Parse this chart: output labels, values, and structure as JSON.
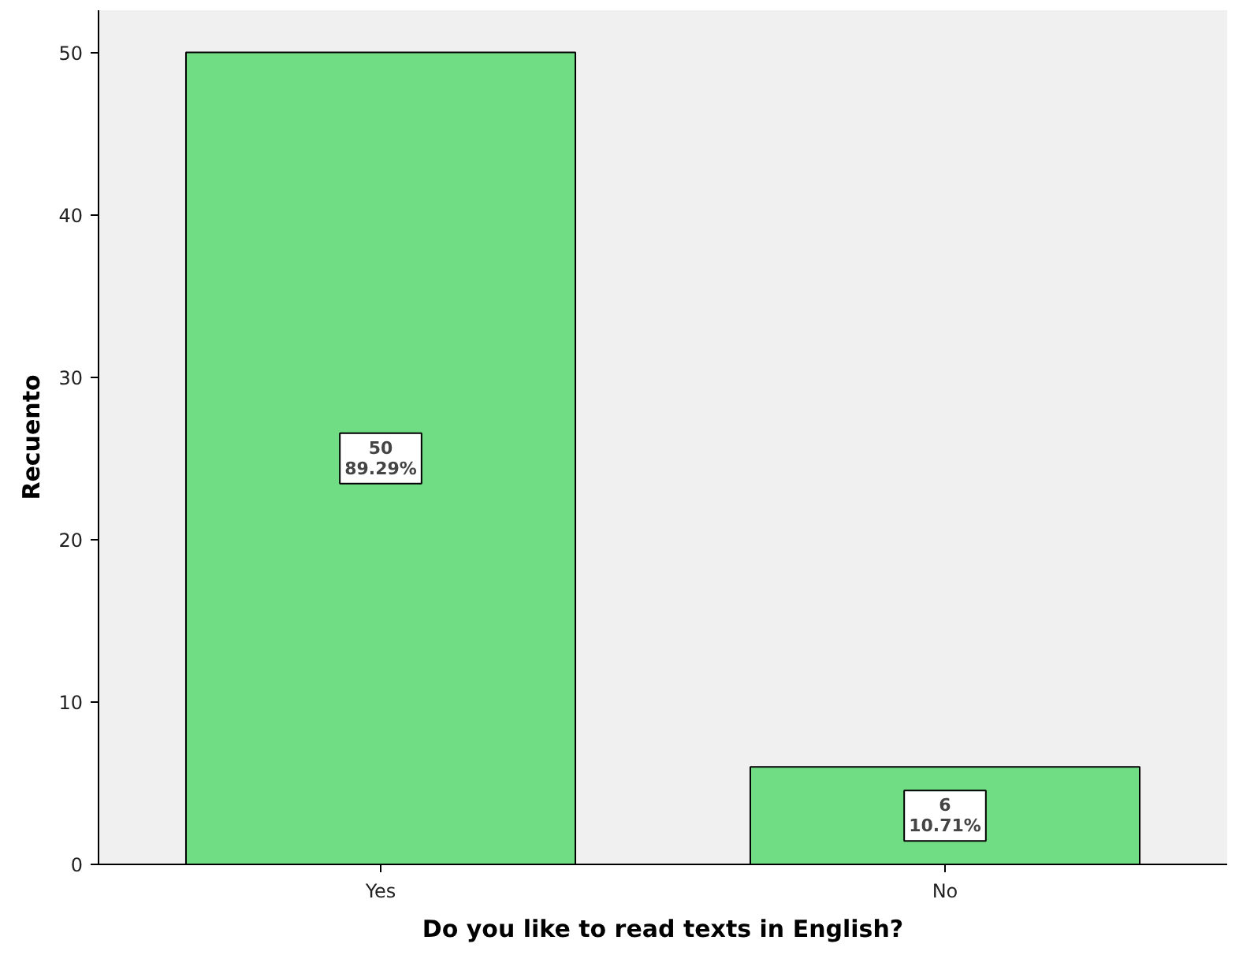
{
  "chart_data": {
    "type": "bar",
    "xlabel": "Do you like to read texts in English?",
    "ylabel": "Recuento",
    "categories": [
      "Yes",
      "No"
    ],
    "values": [
      50,
      6
    ],
    "color": "#70dc84",
    "value_labels": [
      "50\n89.29%",
      "6\n10.71%"
    ],
    "ylim": [
      0,
      52.6
    ],
    "yticks": [
      0,
      10,
      20,
      30,
      40,
      50
    ],
    "grid": false
  }
}
